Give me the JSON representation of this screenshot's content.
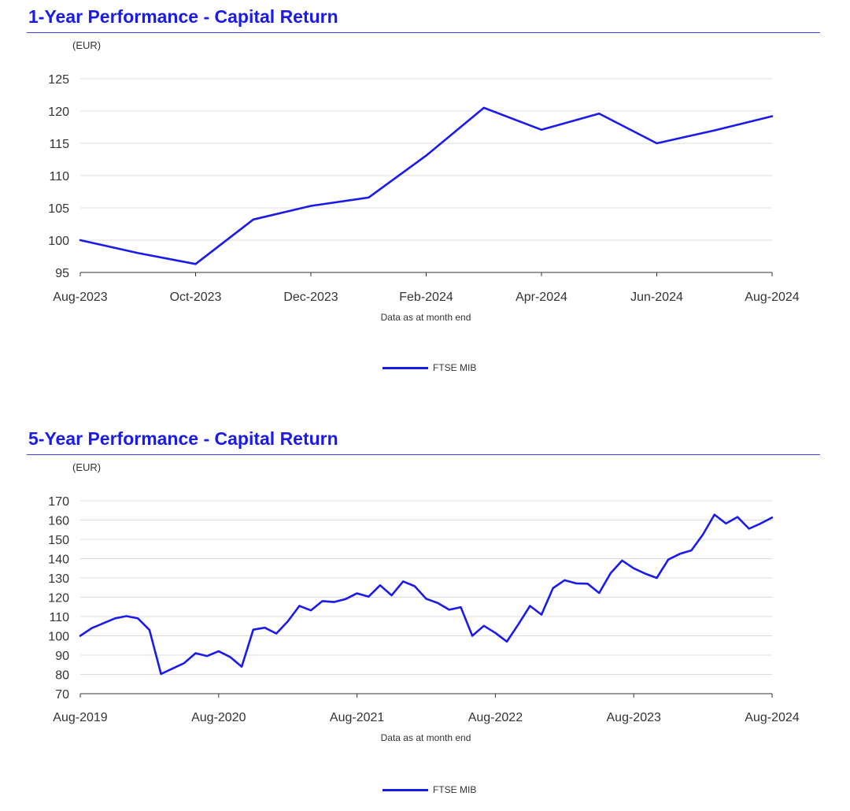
{
  "accent_color": "#1a1aef",
  "chart_data": [
    {
      "type": "line",
      "title": "1-Year Performance - Capital Return",
      "ylabel": "(EUR)",
      "xlabel": "Data as at month end",
      "ylim": [
        95,
        125
      ],
      "yticks": [
        95,
        100,
        105,
        110,
        115,
        120,
        125
      ],
      "x_ticks": [
        "Aug-2023",
        "Oct-2023",
        "Dec-2023",
        "Feb-2024",
        "Apr-2024",
        "Jun-2024",
        "Aug-2024"
      ],
      "x": [
        "Aug-2023",
        "Sep-2023",
        "Oct-2023",
        "Nov-2023",
        "Dec-2023",
        "Jan-2024",
        "Feb-2024",
        "Mar-2024",
        "Apr-2024",
        "May-2024",
        "Jun-2024",
        "Jul-2024",
        "Aug-2024"
      ],
      "series": [
        {
          "name": "FTSE MIB",
          "color": "#1a1aef",
          "values": [
            100.0,
            98.0,
            96.3,
            103.2,
            105.3,
            106.6,
            113.1,
            120.5,
            117.1,
            119.6,
            115.0,
            117.0,
            119.2
          ]
        }
      ],
      "grid": true,
      "legend": "bottom-center"
    },
    {
      "type": "line",
      "title": "5-Year Performance - Capital Return",
      "ylabel": "(EUR)",
      "xlabel": "Data as at month end",
      "ylim": [
        70,
        170
      ],
      "yticks": [
        70,
        80,
        90,
        100,
        110,
        120,
        130,
        140,
        150,
        160,
        170
      ],
      "x_ticks": [
        "Aug-2019",
        "Aug-2020",
        "Aug-2021",
        "Aug-2022",
        "Aug-2023",
        "Aug-2024"
      ],
      "x_start": "Aug-2019",
      "x_end": "Aug-2024",
      "series": [
        {
          "name": "FTSE MIB",
          "color": "#1a1aef",
          "values": [
            100,
            104,
            106.5,
            109,
            110.2,
            109,
            103,
            80.2,
            83,
            85.8,
            91,
            89.5,
            92,
            89,
            84,
            103.2,
            104.2,
            101.2,
            107.5,
            115.5,
            113.2,
            118,
            117.5,
            119,
            122,
            120.3,
            126.2,
            121,
            128.2,
            125.7,
            119.2,
            117,
            113.5,
            114.8,
            100,
            105.2,
            101.5,
            97,
            106,
            115.5,
            111,
            124.7,
            128.8,
            127.2,
            127,
            122.2,
            132.5,
            139,
            135,
            132.2,
            130,
            139.5,
            142.5,
            144.3,
            152.5,
            162.8,
            158.2,
            161.6,
            155.5,
            158.2,
            161.3
          ]
        }
      ],
      "grid": true,
      "legend": "bottom-center"
    }
  ]
}
